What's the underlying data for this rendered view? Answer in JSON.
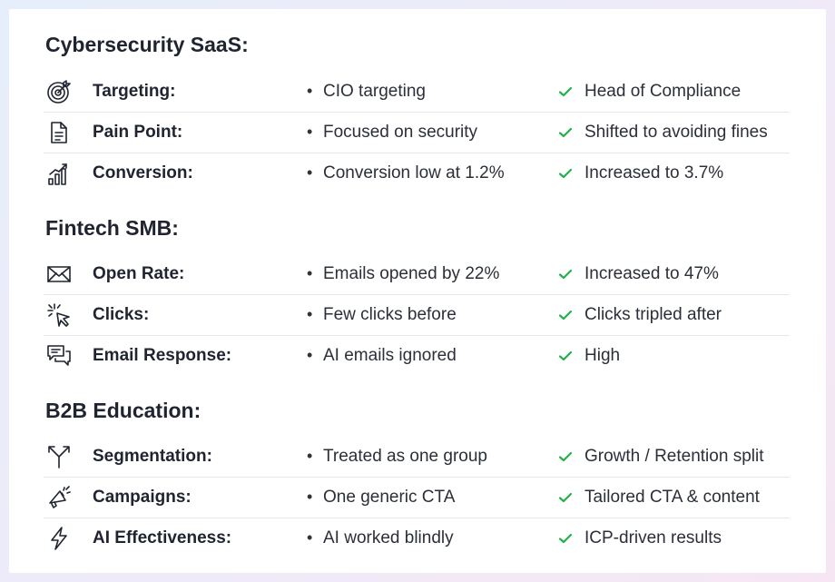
{
  "sections": [
    {
      "title": "Cybersecurity SaaS:",
      "rows": [
        {
          "icon": "target-icon",
          "label": "Targeting:",
          "before": "CIO targeting",
          "after": "Head of Compliance"
        },
        {
          "icon": "document-icon",
          "label": "Pain Point:",
          "before": "Focused on security",
          "after": "Shifted to avoiding fines"
        },
        {
          "icon": "growth-chart-icon",
          "label": "Conversion:",
          "before": "Conversion low at 1.2%",
          "after": "Increased to 3.7%"
        }
      ]
    },
    {
      "title": "Fintech SMB:",
      "rows": [
        {
          "icon": "envelope-icon",
          "label": "Open Rate:",
          "before": "Emails opened by 22%",
          "after": "Increased to 47%"
        },
        {
          "icon": "cursor-click-icon",
          "label": "Clicks:",
          "before": "Few clicks before",
          "after": "Clicks tripled after"
        },
        {
          "icon": "chat-bubbles-icon",
          "label": "Email Response:",
          "before": "AI emails ignored",
          "after": "High"
        }
      ]
    },
    {
      "title": "B2B Education:",
      "rows": [
        {
          "icon": "split-arrows-icon",
          "label": "Segmentation:",
          "before": "Treated as one group",
          "after": "Growth / Retention split"
        },
        {
          "icon": "megaphone-icon",
          "label": "Campaigns:",
          "before": "One generic CTA",
          "after": "Tailored CTA & content"
        },
        {
          "icon": "lightning-icon",
          "label": "AI Effectiveness:",
          "before": "AI worked blindly",
          "after": "ICP-driven results"
        }
      ]
    }
  ],
  "colors": {
    "check": "#22b14c",
    "text": "#1f2430",
    "divider": "#e4e6ea"
  }
}
